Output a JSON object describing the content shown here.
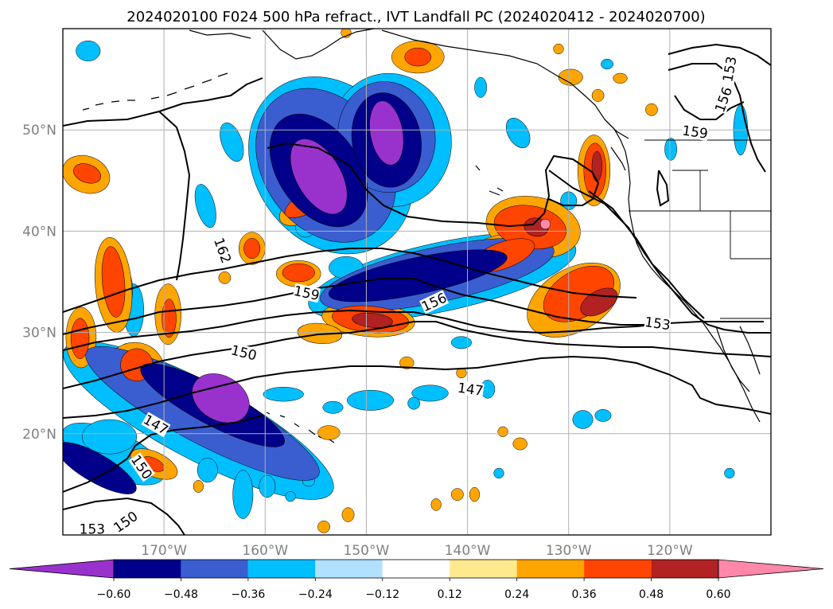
{
  "chart_data": {
    "type": "heatmap",
    "title": "2024020100 F024 500 hPa refract., IVT Landfall PC (2024020412 - 2024020700)",
    "map": {
      "lon_range": [
        -180,
        -110
      ],
      "lat_range": [
        10,
        60
      ],
      "grid": true,
      "x_ticks": [
        {
          "value": -170,
          "label": "170°W"
        },
        {
          "value": -160,
          "label": "160°W"
        },
        {
          "value": -150,
          "label": "150°W"
        },
        {
          "value": -140,
          "label": "140°W"
        },
        {
          "value": -130,
          "label": "130°W"
        },
        {
          "value": -120,
          "label": "120°W"
        }
      ],
      "y_ticks": [
        {
          "value": 20,
          "label": "20°N"
        },
        {
          "value": 30,
          "label": "30°N"
        },
        {
          "value": 40,
          "label": "40°N"
        },
        {
          "value": 50,
          "label": "50°N"
        }
      ]
    },
    "colorbar": {
      "extend": "both",
      "levels": [
        -0.6,
        -0.48,
        -0.36,
        -0.24,
        -0.12,
        0.12,
        0.24,
        0.36,
        0.48,
        0.6
      ],
      "tick_labels": [
        "−0.60",
        "−0.48",
        "−0.36",
        "−0.24",
        "−0.12",
        "0.12",
        "0.24",
        "0.36",
        "0.48",
        "0.60"
      ],
      "colors": [
        "#9932cc",
        "#00008b",
        "#3a5ed0",
        "#00bfff",
        "#b0e2ff",
        "#ffffff",
        "#ffe98f",
        "#ffa500",
        "#ff4500",
        "#b22222",
        "#ff88aa"
      ]
    },
    "contours": {
      "variable": "500 hPa refractivity",
      "color": "#000000",
      "labels": [
        {
          "value": 162,
          "lon": -164.2,
          "lat": 38.1,
          "angle": -70
        },
        {
          "value": 159,
          "lon": -155.9,
          "lat": 33.9,
          "angle": -12
        },
        {
          "value": 156,
          "lon": -143.3,
          "lat": 33.0,
          "angle": 25
        },
        {
          "value": 153,
          "lon": -121.2,
          "lat": 30.9,
          "angle": -8
        },
        {
          "value": 150,
          "lon": -162.1,
          "lat": 28.0,
          "angle": -14
        },
        {
          "value": 147,
          "lon": -139.7,
          "lat": 24.4,
          "angle": -8
        },
        {
          "value": 147,
          "lon": -170.8,
          "lat": 20.9,
          "angle": -30
        },
        {
          "value": 150,
          "lon": -172.2,
          "lat": 16.7,
          "angle": -55
        },
        {
          "value": 150,
          "lon": -173.8,
          "lat": 11.3,
          "angle": 35
        },
        {
          "value": 153,
          "lon": -177.1,
          "lat": 10.6,
          "angle": 0
        },
        {
          "value": 153,
          "lon": -114.1,
          "lat": 56.0,
          "angle": 80
        },
        {
          "value": 156,
          "lon": -114.7,
          "lat": 53.0,
          "angle": 70
        },
        {
          "value": 159,
          "lon": -117.5,
          "lat": 49.8,
          "angle": -8
        }
      ]
    },
    "shaded_regions": [
      {
        "level": -0.6,
        "lon": -154.7,
        "lat": 45.4,
        "rx": 2.2,
        "ry": 4.1,
        "rot": 30
      },
      {
        "level": -0.6,
        "lon": -148.0,
        "lat": 49.7,
        "rx": 1.6,
        "ry": 3.2,
        "rot": 10
      },
      {
        "level": -0.6,
        "lon": -164.4,
        "lat": 23.5,
        "rx": 3.0,
        "ry": 2.2,
        "rot": -30
      },
      {
        "level": -0.48,
        "lon": -154.7,
        "lat": 46.0,
        "rx": 4.0,
        "ry": 6.2,
        "rot": 35
      },
      {
        "level": -0.48,
        "lon": -148.0,
        "lat": 49.0,
        "rx": 3.4,
        "ry": 4.7,
        "rot": 10
      },
      {
        "level": -0.48,
        "lon": -144.9,
        "lat": 35.6,
        "rx": 9.0,
        "ry": 1.8,
        "rot": 12
      },
      {
        "level": -0.48,
        "lon": -165.2,
        "lat": 22.8,
        "rx": 8.0,
        "ry": 1.9,
        "rot": -28
      },
      {
        "level": -0.48,
        "lon": -176.7,
        "lat": 16.6,
        "rx": 4.5,
        "ry": 1.4,
        "rot": -30
      },
      {
        "level": -0.36,
        "lon": -154.0,
        "lat": 46.5,
        "rx": 6.2,
        "ry": 8.2,
        "rot": 35
      },
      {
        "level": -0.36,
        "lon": -148.0,
        "lat": 49.3,
        "rx": 4.8,
        "ry": 5.5,
        "rot": 10
      },
      {
        "level": -0.36,
        "lon": -143.0,
        "lat": 35.7,
        "rx": 11.8,
        "ry": 2.7,
        "rot": 12
      },
      {
        "level": -0.36,
        "lon": -166.2,
        "lat": 22.0,
        "rx": 13.0,
        "ry": 2.9,
        "rot": -28
      },
      {
        "level": -0.24,
        "lon": -153.5,
        "lat": 46.5,
        "rx": 7.5,
        "ry": 9.3,
        "rot": 35
      },
      {
        "level": -0.24,
        "lon": -147.6,
        "lat": 49.0,
        "rx": 6.0,
        "ry": 6.6,
        "rot": 10
      },
      {
        "level": -0.24,
        "lon": -142.5,
        "lat": 35.5,
        "rx": 13.5,
        "ry": 3.4,
        "rot": 12
      },
      {
        "level": -0.24,
        "lon": -166.6,
        "lat": 21.3,
        "rx": 15.0,
        "ry": 3.8,
        "rot": -28
      },
      {
        "level": -0.24,
        "lon": -175.0,
        "lat": 18.0,
        "rx": 5.5,
        "ry": 2.2,
        "rot": -25
      },
      {
        "level": -0.24,
        "lon": -163.3,
        "lat": 48.8,
        "rx": 1.0,
        "ry": 2.0,
        "rot": 20
      },
      {
        "level": -0.24,
        "lon": -177.5,
        "lat": 57.8,
        "rx": 1.2,
        "ry": 1.0,
        "rot": 0
      },
      {
        "level": -0.24,
        "lon": -165.9,
        "lat": 42.5,
        "rx": 0.9,
        "ry": 2.2,
        "rot": 15
      },
      {
        "level": -0.24,
        "lon": -173.0,
        "lat": 32.2,
        "rx": 1.0,
        "ry": 2.6,
        "rot": 0
      },
      {
        "level": -0.24,
        "lon": -156.0,
        "lat": 40.4,
        "rx": 1.0,
        "ry": 1.0,
        "rot": 0
      },
      {
        "level": -0.24,
        "lon": -152.0,
        "lat": 36.4,
        "rx": 1.7,
        "ry": 1.1,
        "rot": 0
      },
      {
        "level": -0.24,
        "lon": -135.0,
        "lat": 49.7,
        "rx": 1.0,
        "ry": 1.6,
        "rot": 30
      },
      {
        "level": -0.24,
        "lon": -130.0,
        "lat": 43.0,
        "rx": 0.8,
        "ry": 0.9,
        "rot": 0
      },
      {
        "level": -0.24,
        "lon": -119.9,
        "lat": 48.1,
        "rx": 0.6,
        "ry": 1.1,
        "rot": 0
      },
      {
        "level": -0.24,
        "lon": -113.0,
        "lat": 50.0,
        "rx": 0.7,
        "ry": 2.5,
        "rot": 0
      },
      {
        "level": -0.24,
        "lon": -140.6,
        "lat": 29.0,
        "rx": 1.0,
        "ry": 0.6,
        "rot": 0
      },
      {
        "level": -0.24,
        "lon": -138.7,
        "lat": 54.2,
        "rx": 0.6,
        "ry": 1.0,
        "rot": 0
      },
      {
        "level": -0.24,
        "lon": -141.3,
        "lat": 34.4,
        "rx": 1.0,
        "ry": 0.6,
        "rot": 0
      },
      {
        "level": -0.24,
        "lon": -138.0,
        "lat": 24.4,
        "rx": 0.7,
        "ry": 0.9,
        "rot": 0
      },
      {
        "level": -0.24,
        "lon": -143.7,
        "lat": 24.0,
        "rx": 1.8,
        "ry": 0.8,
        "rot": 0
      },
      {
        "level": -0.24,
        "lon": -145.3,
        "lat": 23.0,
        "rx": 0.6,
        "ry": 0.6,
        "rot": 0
      },
      {
        "level": -0.24,
        "lon": -149.6,
        "lat": 23.3,
        "rx": 2.3,
        "ry": 1.0,
        "rot": 0
      },
      {
        "level": -0.24,
        "lon": -153.3,
        "lat": 22.6,
        "rx": 1.0,
        "ry": 0.6,
        "rot": 0
      },
      {
        "level": -0.24,
        "lon": -158.2,
        "lat": 23.9,
        "rx": 2.0,
        "ry": 0.7,
        "rot": 0
      },
      {
        "level": -0.24,
        "lon": -160.2,
        "lat": 17.7,
        "rx": 1.1,
        "ry": 1.4,
        "rot": 0
      },
      {
        "level": -0.24,
        "lon": -162.2,
        "lat": 14.0,
        "rx": 1.0,
        "ry": 2.4,
        "rot": 0
      },
      {
        "level": -0.24,
        "lon": -159.8,
        "lat": 14.8,
        "rx": 0.8,
        "ry": 1.1,
        "rot": 0
      },
      {
        "level": -0.24,
        "lon": -157.5,
        "lat": 13.8,
        "rx": 0.5,
        "ry": 0.5,
        "rot": 0
      },
      {
        "level": -0.24,
        "lon": -155.7,
        "lat": 15.3,
        "rx": 0.6,
        "ry": 0.5,
        "rot": 0
      },
      {
        "level": -0.24,
        "lon": -165.7,
        "lat": 16.4,
        "rx": 1.0,
        "ry": 1.2,
        "rot": 0
      },
      {
        "level": -0.24,
        "lon": -158.4,
        "lat": 8.5,
        "rx": 1.7,
        "ry": 1.0,
        "rot": 0
      },
      {
        "level": -0.24,
        "lon": -136.9,
        "lat": 16.1,
        "rx": 0.5,
        "ry": 0.5,
        "rot": 0
      },
      {
        "level": -0.24,
        "lon": -126.6,
        "lat": 21.8,
        "rx": 0.8,
        "ry": 0.6,
        "rot": 0
      },
      {
        "level": -0.24,
        "lon": -128.6,
        "lat": 21.4,
        "rx": 1.0,
        "ry": 0.9,
        "rot": 0
      },
      {
        "level": -0.24,
        "lon": -114.1,
        "lat": 16.1,
        "rx": 0.5,
        "ry": 0.5,
        "rot": 0
      },
      {
        "level": -0.24,
        "lon": -175.4,
        "lat": 19.7,
        "rx": 2.7,
        "ry": 1.7,
        "rot": 0
      },
      {
        "level": -0.24,
        "lon": -126.2,
        "lat": 56.5,
        "rx": 0.6,
        "ry": 0.5,
        "rot": 0
      },
      {
        "level": -0.24,
        "lon": -174.1,
        "lat": 34.2,
        "rx": 1.0,
        "ry": 2.3,
        "rot": 0
      },
      {
        "level": -0.24,
        "lon": -176.9,
        "lat": 45.7,
        "rx": 1.2,
        "ry": 1.1,
        "rot": 0
      },
      {
        "level": 0.24,
        "lon": -133.5,
        "lat": 40.4,
        "rx": 4.7,
        "ry": 3.0,
        "rot": -10
      },
      {
        "level": 0.24,
        "lon": -137.4,
        "lat": 37.4,
        "rx": 4.4,
        "ry": 2.0,
        "rot": 20
      },
      {
        "level": 0.24,
        "lon": -129.5,
        "lat": 33.2,
        "rx": 5.0,
        "ry": 3.1,
        "rot": 30
      },
      {
        "level": 0.24,
        "lon": -127.5,
        "lat": 46.0,
        "rx": 1.6,
        "ry": 3.5,
        "rot": 0
      },
      {
        "level": 0.24,
        "lon": -155.2,
        "lat": 42.9,
        "rx": 3.8,
        "ry": 1.6,
        "rot": 30
      },
      {
        "level": 0.24,
        "lon": -156.7,
        "lat": 35.8,
        "rx": 2.2,
        "ry": 1.3,
        "rot": 0
      },
      {
        "level": 0.24,
        "lon": -149.8,
        "lat": 31.3,
        "rx": 4.6,
        "ry": 1.7,
        "rot": -5
      },
      {
        "level": 0.24,
        "lon": -154.6,
        "lat": 29.9,
        "rx": 2.2,
        "ry": 1.0,
        "rot": -5
      },
      {
        "level": 0.24,
        "lon": -175.0,
        "lat": 34.7,
        "rx": 1.8,
        "ry": 4.7,
        "rot": 5
      },
      {
        "level": 0.24,
        "lon": -178.2,
        "lat": 29.5,
        "rx": 1.5,
        "ry": 3.0,
        "rot": 0
      },
      {
        "level": 0.24,
        "lon": -172.8,
        "lat": 26.5,
        "rx": 2.8,
        "ry": 2.5,
        "rot": -10
      },
      {
        "level": 0.24,
        "lon": -169.6,
        "lat": 31.8,
        "rx": 1.3,
        "ry": 3.0,
        "rot": 0
      },
      {
        "level": 0.24,
        "lon": -161.3,
        "lat": 38.3,
        "rx": 1.3,
        "ry": 1.6,
        "rot": 0
      },
      {
        "level": 0.24,
        "lon": -177.7,
        "lat": 45.6,
        "rx": 2.4,
        "ry": 1.8,
        "rot": -20
      },
      {
        "level": 0.24,
        "lon": -171.0,
        "lat": 17.0,
        "rx": 2.5,
        "ry": 1.2,
        "rot": -25
      },
      {
        "level": 0.24,
        "lon": -143.3,
        "lat": 34.6,
        "rx": 1.2,
        "ry": 1.1,
        "rot": 0
      },
      {
        "level": 0.24,
        "lon": -144.9,
        "lat": 57.2,
        "rx": 2.6,
        "ry": 1.6,
        "rot": 0
      },
      {
        "level": 0.24,
        "lon": -129.8,
        "lat": 55.2,
        "rx": 1.2,
        "ry": 0.8,
        "rot": 0
      },
      {
        "level": 0.24,
        "lon": -127.1,
        "lat": 53.4,
        "rx": 0.6,
        "ry": 0.6,
        "rot": 0
      },
      {
        "level": 0.24,
        "lon": -124.9,
        "lat": 55.1,
        "rx": 0.7,
        "ry": 0.5,
        "rot": 0
      },
      {
        "level": 0.24,
        "lon": -153.7,
        "lat": 20.1,
        "rx": 1.1,
        "ry": 0.7,
        "rot": 0
      },
      {
        "level": 0.24,
        "lon": -146.0,
        "lat": 27.0,
        "rx": 0.7,
        "ry": 0.6,
        "rot": 0
      },
      {
        "level": 0.24,
        "lon": -134.8,
        "lat": 19.0,
        "rx": 0.7,
        "ry": 0.6,
        "rot": 0
      },
      {
        "level": 0.24,
        "lon": -136.5,
        "lat": 20.2,
        "rx": 0.5,
        "ry": 0.5,
        "rot": 0
      },
      {
        "level": 0.24,
        "lon": -141.0,
        "lat": 14.0,
        "rx": 0.6,
        "ry": 0.6,
        "rot": 0
      },
      {
        "level": 0.24,
        "lon": -143.1,
        "lat": 13.0,
        "rx": 0.5,
        "ry": 0.6,
        "rot": 0
      },
      {
        "level": 0.24,
        "lon": -139.3,
        "lat": 14.0,
        "rx": 0.5,
        "ry": 0.7,
        "rot": 0
      },
      {
        "level": 0.24,
        "lon": -151.8,
        "lat": 12.0,
        "rx": 0.6,
        "ry": 0.7,
        "rot": 0
      },
      {
        "level": 0.24,
        "lon": -154.2,
        "lat": 10.8,
        "rx": 0.6,
        "ry": 0.6,
        "rot": 0
      },
      {
        "level": 0.24,
        "lon": -166.6,
        "lat": 14.8,
        "rx": 0.5,
        "ry": 0.6,
        "rot": 0
      },
      {
        "level": 0.24,
        "lon": -121.3,
        "lat": 31.1,
        "rx": 0.6,
        "ry": 0.5,
        "rot": 0
      },
      {
        "level": 0.24,
        "lon": -121.8,
        "lat": 52.0,
        "rx": 0.6,
        "ry": 0.6,
        "rot": 0
      },
      {
        "level": 0.24,
        "lon": -131.0,
        "lat": 58.0,
        "rx": 0.5,
        "ry": 0.5,
        "rot": 0
      },
      {
        "level": 0.24,
        "lon": -152.0,
        "lat": 59.6,
        "rx": 0.5,
        "ry": 0.5,
        "rot": 0
      },
      {
        "level": 0.24,
        "lon": -140.6,
        "lat": 26.0,
        "rx": 0.5,
        "ry": 0.5,
        "rot": 0
      },
      {
        "level": 0.24,
        "lon": -164.0,
        "lat": 35.4,
        "rx": 0.6,
        "ry": 0.6,
        "rot": 0
      },
      {
        "level": 0.36,
        "lon": -133.8,
        "lat": 40.4,
        "rx": 3.6,
        "ry": 2.1,
        "rot": -10
      },
      {
        "level": 0.36,
        "lon": -136.5,
        "lat": 37.6,
        "rx": 3.3,
        "ry": 1.3,
        "rot": 20
      },
      {
        "level": 0.36,
        "lon": -129.0,
        "lat": 33.8,
        "rx": 3.8,
        "ry": 2.3,
        "rot": 30
      },
      {
        "level": 0.36,
        "lon": -127.4,
        "lat": 46.0,
        "rx": 1.1,
        "ry": 2.7,
        "rot": 0
      },
      {
        "level": 0.36,
        "lon": -155.4,
        "lat": 43.1,
        "rx": 3.0,
        "ry": 1.1,
        "rot": 30
      },
      {
        "level": 0.36,
        "lon": -156.7,
        "lat": 35.9,
        "rx": 1.6,
        "ry": 0.9,
        "rot": 0
      },
      {
        "level": 0.36,
        "lon": -149.6,
        "lat": 31.3,
        "rx": 3.8,
        "ry": 1.3,
        "rot": -5
      },
      {
        "level": 0.36,
        "lon": -175.0,
        "lat": 35.0,
        "rx": 1.1,
        "ry": 3.5,
        "rot": 5
      },
      {
        "level": 0.36,
        "lon": -178.3,
        "lat": 29.4,
        "rx": 0.9,
        "ry": 2.0,
        "rot": 0
      },
      {
        "level": 0.36,
        "lon": -172.7,
        "lat": 26.8,
        "rx": 1.6,
        "ry": 1.6,
        "rot": -10
      },
      {
        "level": 0.36,
        "lon": -169.5,
        "lat": 31.4,
        "rx": 0.7,
        "ry": 1.9,
        "rot": 0
      },
      {
        "level": 0.36,
        "lon": -161.3,
        "lat": 38.3,
        "rx": 0.8,
        "ry": 1.0,
        "rot": 0
      },
      {
        "level": 0.36,
        "lon": -177.6,
        "lat": 45.7,
        "rx": 1.4,
        "ry": 0.9,
        "rot": -20
      },
      {
        "level": 0.36,
        "lon": -144.9,
        "lat": 57.2,
        "rx": 1.3,
        "ry": 0.9,
        "rot": 0
      },
      {
        "level": 0.36,
        "lon": -171.1,
        "lat": 17.0,
        "rx": 1.2,
        "ry": 0.6,
        "rot": -25
      },
      {
        "level": 0.48,
        "lon": -133.2,
        "lat": 40.4,
        "rx": 1.2,
        "ry": 0.9,
        "rot": -10
      },
      {
        "level": 0.48,
        "lon": -127.0,
        "lat": 33.0,
        "rx": 2.0,
        "ry": 1.1,
        "rot": 30
      },
      {
        "level": 0.48,
        "lon": -149.4,
        "lat": 31.2,
        "rx": 2.0,
        "ry": 0.7,
        "rot": -5
      },
      {
        "level": 0.48,
        "lon": -127.2,
        "lat": 46.4,
        "rx": 0.5,
        "ry": 1.5,
        "rot": 0
      },
      {
        "level": 0.6,
        "lon": -132.3,
        "lat": 40.7,
        "rx": 0.5,
        "ry": 0.5,
        "rot": 0
      }
    ]
  }
}
